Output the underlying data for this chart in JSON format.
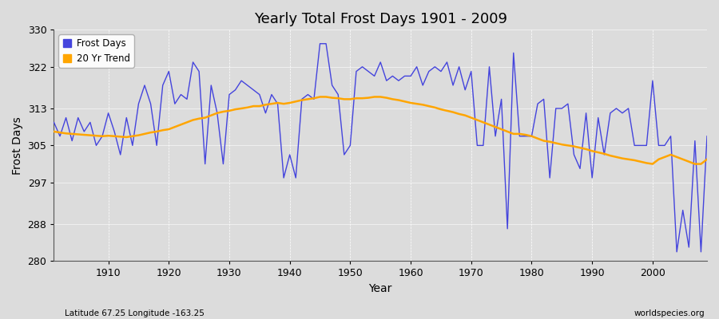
{
  "title": "Yearly Total Frost Days 1901 - 2009",
  "xlabel": "Year",
  "ylabel": "Frost Days",
  "xlim": [
    1901,
    2009
  ],
  "ylim": [
    280,
    330
  ],
  "yticks": [
    280,
    288,
    297,
    305,
    313,
    322,
    330
  ],
  "xticks": [
    1910,
    1920,
    1930,
    1940,
    1950,
    1960,
    1970,
    1980,
    1990,
    2000
  ],
  "bg_color": "#dcdcdc",
  "plot_bg_color": "#dcdcdc",
  "frost_color": "#4444dd",
  "trend_color": "#ffa500",
  "subtitle_left": "Latitude 67.25 Longitude -163.25",
  "subtitle_right": "worldspecies.org",
  "legend_frost": "Frost Days",
  "legend_trend": "20 Yr Trend",
  "years": [
    1901,
    1902,
    1903,
    1904,
    1905,
    1906,
    1907,
    1908,
    1909,
    1910,
    1911,
    1912,
    1913,
    1914,
    1915,
    1916,
    1917,
    1918,
    1919,
    1920,
    1921,
    1922,
    1923,
    1924,
    1925,
    1926,
    1927,
    1928,
    1929,
    1930,
    1931,
    1932,
    1933,
    1934,
    1935,
    1936,
    1937,
    1938,
    1939,
    1940,
    1941,
    1942,
    1943,
    1944,
    1945,
    1946,
    1947,
    1948,
    1949,
    1950,
    1951,
    1952,
    1953,
    1954,
    1955,
    1956,
    1957,
    1958,
    1959,
    1960,
    1961,
    1962,
    1963,
    1964,
    1965,
    1966,
    1967,
    1968,
    1969,
    1970,
    1971,
    1972,
    1973,
    1974,
    1975,
    1976,
    1977,
    1978,
    1979,
    1980,
    1981,
    1982,
    1983,
    1984,
    1985,
    1986,
    1987,
    1988,
    1989,
    1990,
    1991,
    1992,
    1993,
    1994,
    1995,
    1996,
    1997,
    1998,
    1999,
    2000,
    2001,
    2002,
    2003,
    2004,
    2005,
    2006,
    2007,
    2008,
    2009
  ],
  "frost_days": [
    310,
    307,
    311,
    306,
    311,
    308,
    310,
    305,
    307,
    312,
    308,
    303,
    311,
    305,
    314,
    318,
    314,
    305,
    318,
    321,
    314,
    316,
    315,
    323,
    321,
    301,
    318,
    312,
    301,
    316,
    317,
    319,
    318,
    317,
    316,
    312,
    316,
    314,
    298,
    303,
    298,
    315,
    316,
    315,
    327,
    327,
    318,
    316,
    303,
    305,
    321,
    322,
    321,
    320,
    323,
    319,
    320,
    319,
    320,
    320,
    322,
    318,
    321,
    322,
    321,
    323,
    318,
    322,
    317,
    321,
    305,
    305,
    322,
    307,
    315,
    287,
    325,
    307,
    307,
    307,
    314,
    315,
    298,
    313,
    313,
    314,
    303,
    300,
    312,
    298,
    311,
    303,
    312,
    313,
    312,
    313,
    305,
    305,
    305,
    319,
    305,
    305,
    307,
    282,
    291,
    283,
    306,
    282,
    307
  ],
  "trend_years": [
    1901,
    1902,
    1903,
    1904,
    1905,
    1906,
    1907,
    1908,
    1909,
    1910,
    1911,
    1912,
    1913,
    1914,
    1915,
    1916,
    1917,
    1918,
    1919,
    1920,
    1921,
    1922,
    1923,
    1924,
    1925,
    1926,
    1927,
    1928,
    1929,
    1930,
    1931,
    1932,
    1933,
    1934,
    1935,
    1936,
    1937,
    1938,
    1939,
    1940,
    1941,
    1942,
    1943,
    1944,
    1945,
    1946,
    1947,
    1948,
    1949,
    1950,
    1951,
    1952,
    1953,
    1954,
    1955,
    1956,
    1957,
    1958,
    1959,
    1960,
    1961,
    1962,
    1963,
    1964,
    1965,
    1966,
    1967,
    1968,
    1969,
    1970,
    1971,
    1972,
    1973,
    1974,
    1975,
    1976,
    1977,
    1978,
    1979,
    1980,
    1981,
    1982,
    1983,
    1984,
    1985,
    1986,
    1987,
    1988,
    1989,
    1990,
    1991,
    1992,
    1993,
    1994,
    1995,
    1996,
    1997,
    1998,
    1999,
    2000,
    2001,
    2002,
    2003,
    2004,
    2005,
    2006,
    2007,
    2008,
    2009
  ],
  "trend_values": [
    308.0,
    307.8,
    307.6,
    307.5,
    307.4,
    307.3,
    307.2,
    307.1,
    307.0,
    307.1,
    307.0,
    306.9,
    306.8,
    307.0,
    307.2,
    307.5,
    307.8,
    308.0,
    308.3,
    308.5,
    309.0,
    309.5,
    310.0,
    310.5,
    310.8,
    311.0,
    311.5,
    312.0,
    312.3,
    312.5,
    312.8,
    313.0,
    313.2,
    313.5,
    313.5,
    313.8,
    314.0,
    314.2,
    314.0,
    314.2,
    314.5,
    314.8,
    315.0,
    315.2,
    315.5,
    315.5,
    315.3,
    315.2,
    315.0,
    315.0,
    315.2,
    315.2,
    315.3,
    315.5,
    315.5,
    315.3,
    315.0,
    314.8,
    314.5,
    314.2,
    314.0,
    313.8,
    313.5,
    313.2,
    312.8,
    312.5,
    312.2,
    311.8,
    311.5,
    311.0,
    310.5,
    310.0,
    309.5,
    309.0,
    308.5,
    308.0,
    307.5,
    307.5,
    307.3,
    307.0,
    306.5,
    306.0,
    305.8,
    305.5,
    305.2,
    305.0,
    304.8,
    304.5,
    304.2,
    303.8,
    303.5,
    303.2,
    302.8,
    302.5,
    302.2,
    302.0,
    301.8,
    301.5,
    301.2,
    301.0,
    302.0,
    302.5,
    303.0,
    302.5,
    302.0,
    301.5,
    301.0,
    301.0,
    302.0
  ]
}
